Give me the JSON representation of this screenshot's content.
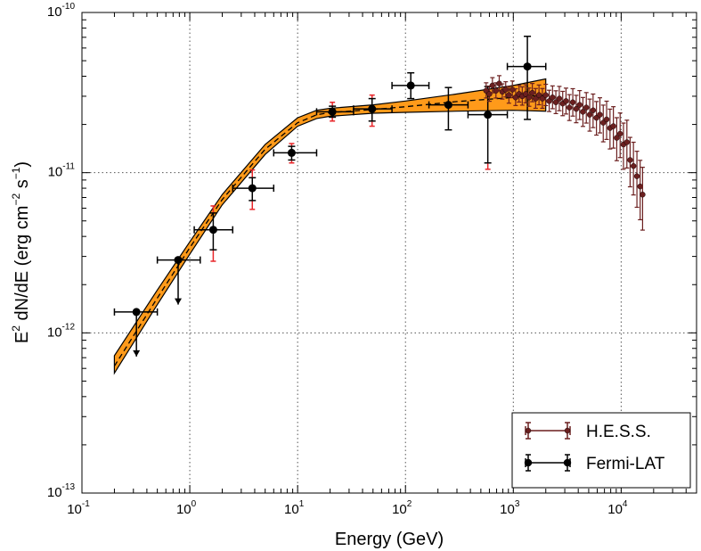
{
  "chart_data": {
    "type": "scatter",
    "xscale": "log",
    "yscale": "log",
    "xlim": [
      0.1,
      50000
    ],
    "ylim": [
      1e-13,
      1e-10
    ],
    "grid": true,
    "xlabel": {
      "base": "Energy (GeV)"
    },
    "ylabel": {
      "prefix": "E",
      "prefix_sup": "2",
      "middle": " dN/dE (erg cm",
      "exp1": "−2",
      "middle2": " s",
      "exp2": "−1",
      "suffix": ")"
    },
    "xticks": [
      {
        "value": 0.1,
        "base": "10",
        "exp": "-1"
      },
      {
        "value": 1,
        "base": "10",
        "exp": "0"
      },
      {
        "value": 10,
        "base": "10",
        "exp": "1"
      },
      {
        "value": 100,
        "base": "10",
        "exp": "2"
      },
      {
        "value": 1000,
        "base": "10",
        "exp": "3"
      },
      {
        "value": 10000,
        "base": "10",
        "exp": "4"
      }
    ],
    "yticks": [
      {
        "value": 1e-13,
        "base": "10",
        "exp": "-13"
      },
      {
        "value": 1e-12,
        "base": "10",
        "exp": "-12"
      },
      {
        "value": 1e-11,
        "base": "10",
        "exp": "-11"
      },
      {
        "value": 1e-10,
        "base": "10",
        "exp": "-10"
      }
    ],
    "legend": {
      "placement": "bottom-right",
      "entries": [
        "H.E.S.S.",
        "Fermi-LAT"
      ]
    },
    "colors": {
      "band": "#ff9a1a",
      "hess": "#6b1f1f",
      "fermi": "#000000",
      "sys_error": "#e8262a"
    },
    "model": {
      "best": [
        [
          0.2,
          6.2e-13
        ],
        [
          0.5,
          1.65e-12
        ],
        [
          1,
          3.4e-12
        ],
        [
          2,
          6.8e-12
        ],
        [
          5,
          1.4e-11
        ],
        [
          10,
          2.05e-11
        ],
        [
          15,
          2.3e-11
        ],
        [
          20,
          2.37e-11
        ],
        [
          50,
          2.48e-11
        ],
        [
          100,
          2.58e-11
        ],
        [
          300,
          2.78e-11
        ],
        [
          1000,
          2.95e-11
        ],
        [
          2000,
          3.05e-11
        ]
      ],
      "upper": [
        [
          0.2,
          7.2e-13
        ],
        [
          0.5,
          1.85e-12
        ],
        [
          1,
          3.7e-12
        ],
        [
          2,
          7.3e-12
        ],
        [
          5,
          1.5e-11
        ],
        [
          10,
          2.2e-11
        ],
        [
          15,
          2.45e-11
        ],
        [
          20,
          2.52e-11
        ],
        [
          50,
          2.65e-11
        ],
        [
          100,
          2.8e-11
        ],
        [
          300,
          3.1e-11
        ],
        [
          1000,
          3.5e-11
        ],
        [
          2000,
          3.85e-11
        ]
      ],
      "lower": [
        [
          0.2,
          5.6e-13
        ],
        [
          0.5,
          1.5e-12
        ],
        [
          1,
          3.1e-12
        ],
        [
          2,
          6.3e-12
        ],
        [
          5,
          1.3e-11
        ],
        [
          10,
          1.95e-11
        ],
        [
          15,
          2.18e-11
        ],
        [
          20,
          2.25e-11
        ],
        [
          50,
          2.35e-11
        ],
        [
          100,
          2.38e-11
        ],
        [
          300,
          2.42e-11
        ],
        [
          1000,
          2.45e-11
        ],
        [
          2000,
          2.42e-11
        ]
      ]
    },
    "fermi_points": [
      {
        "x": 0.32,
        "y": 1.35e-12,
        "xlo": 0.2,
        "xhi": 0.5,
        "ul": true
      },
      {
        "x": 0.78,
        "y": 2.85e-12,
        "xlo": 0.5,
        "xhi": 1.25,
        "ul": true
      },
      {
        "x": 1.65,
        "y": 4.4e-12,
        "xlo": 1.1,
        "xhi": 2.5,
        "ylo": 3.3e-12,
        "yhi": 5.6e-12,
        "sys_lo": 2.8e-12,
        "sys_hi": 6.2e-12
      },
      {
        "x": 3.8,
        "y": 8e-12,
        "xlo": 2.5,
        "xhi": 6,
        "ylo": 6.7e-12,
        "yhi": 9.3e-12,
        "sys_lo": 5.9e-12,
        "sys_hi": 1.04e-11
      },
      {
        "x": 8.8,
        "y": 1.33e-11,
        "xlo": 6,
        "xhi": 15,
        "ylo": 1.2e-11,
        "yhi": 1.46e-11,
        "sys_lo": 1.15e-11,
        "sys_hi": 1.52e-11
      },
      {
        "x": 21,
        "y": 2.4e-11,
        "xlo": 15,
        "xhi": 33,
        "ylo": 2.22e-11,
        "yhi": 2.6e-11,
        "sys_lo": 2.1e-11,
        "sys_hi": 2.75e-11
      },
      {
        "x": 49,
        "y": 2.5e-11,
        "xlo": 33,
        "xhi": 75,
        "ylo": 2.1e-11,
        "yhi": 2.9e-11,
        "sys_lo": 1.95e-11,
        "sys_hi": 3.05e-11
      },
      {
        "x": 112,
        "y": 3.5e-11,
        "xlo": 75,
        "xhi": 165,
        "ylo": 2.9e-11,
        "yhi": 4.2e-11
      },
      {
        "x": 250,
        "y": 2.65e-11,
        "xlo": 165,
        "xhi": 380,
        "ylo": 1.85e-11,
        "yhi": 3.4e-11
      },
      {
        "x": 580,
        "y": 2.3e-11,
        "xlo": 380,
        "xhi": 880,
        "ylo": 1.15e-11,
        "yhi": 3.45e-11,
        "sys_lo": 1.05e-11
      },
      {
        "x": 1350,
        "y": 4.6e-11,
        "xlo": 880,
        "xhi": 2000,
        "ylo": 2.15e-11,
        "yhi": 7.1e-11
      }
    ],
    "hess_points": [
      {
        "x": 560,
        "y": 3.25e-11,
        "yerr": 0.1
      },
      {
        "x": 600,
        "y": 3.1e-11,
        "yerr": 0.1
      },
      {
        "x": 640,
        "y": 3.5e-11,
        "yerr": 0.1
      },
      {
        "x": 690,
        "y": 3.25e-11,
        "yerr": 0.1
      },
      {
        "x": 740,
        "y": 3.6e-11,
        "yerr": 0.1
      },
      {
        "x": 790,
        "y": 3.2e-11,
        "yerr": 0.1
      },
      {
        "x": 850,
        "y": 3.3e-11,
        "yerr": 0.1
      },
      {
        "x": 910,
        "y": 3.05e-11,
        "yerr": 0.11
      },
      {
        "x": 980,
        "y": 3.3e-11,
        "yerr": 0.11
      },
      {
        "x": 1050,
        "y": 2.95e-11,
        "yerr": 0.11
      },
      {
        "x": 1130,
        "y": 3.1e-11,
        "yerr": 0.11
      },
      {
        "x": 1210,
        "y": 3e-11,
        "yerr": 0.12
      },
      {
        "x": 1300,
        "y": 3.1e-11,
        "yerr": 0.12
      },
      {
        "x": 1400,
        "y": 2.95e-11,
        "yerr": 0.12
      },
      {
        "x": 1500,
        "y": 3.15e-11,
        "yerr": 0.12
      },
      {
        "x": 1610,
        "y": 2.9e-11,
        "yerr": 0.13
      },
      {
        "x": 1730,
        "y": 3.05e-11,
        "yerr": 0.13
      },
      {
        "x": 1860,
        "y": 2.9e-11,
        "yerr": 0.13
      },
      {
        "x": 2000,
        "y": 3.05e-11,
        "yerr": 0.14
      },
      {
        "x": 2150,
        "y": 2.8e-11,
        "yerr": 0.14
      },
      {
        "x": 2310,
        "y": 2.95e-11,
        "yerr": 0.15
      },
      {
        "x": 2480,
        "y": 2.75e-11,
        "yerr": 0.15
      },
      {
        "x": 2670,
        "y": 2.9e-11,
        "yerr": 0.16
      },
      {
        "x": 2870,
        "y": 2.7e-11,
        "yerr": 0.16
      },
      {
        "x": 3080,
        "y": 2.8e-11,
        "yerr": 0.17
      },
      {
        "x": 3310,
        "y": 2.55e-11,
        "yerr": 0.17
      },
      {
        "x": 3560,
        "y": 2.75e-11,
        "yerr": 0.18
      },
      {
        "x": 3830,
        "y": 2.5e-11,
        "yerr": 0.18
      },
      {
        "x": 4120,
        "y": 2.65e-11,
        "yerr": 0.19
      },
      {
        "x": 4420,
        "y": 2.4e-11,
        "yerr": 0.19
      },
      {
        "x": 4750,
        "y": 2.55e-11,
        "yerr": 0.2
      },
      {
        "x": 5110,
        "y": 2.3e-11,
        "yerr": 0.21
      },
      {
        "x": 5490,
        "y": 2.45e-11,
        "yerr": 0.22
      },
      {
        "x": 5900,
        "y": 2.2e-11,
        "yerr": 0.22
      },
      {
        "x": 6350,
        "y": 2.3e-11,
        "yerr": 0.23
      },
      {
        "x": 6820,
        "y": 2.05e-11,
        "yerr": 0.24
      },
      {
        "x": 7330,
        "y": 2.15e-11,
        "yerr": 0.25
      },
      {
        "x": 7880,
        "y": 1.9e-11,
        "yerr": 0.26
      },
      {
        "x": 8470,
        "y": 1.95e-11,
        "yerr": 0.27
      },
      {
        "x": 9100,
        "y": 1.65e-11,
        "yerr": 0.28
      },
      {
        "x": 9780,
        "y": 1.75e-11,
        "yerr": 0.29
      },
      {
        "x": 10500,
        "y": 1.5e-11,
        "yerr": 0.3
      },
      {
        "x": 11300,
        "y": 1.55e-11,
        "yerr": 0.31
      },
      {
        "x": 12100,
        "y": 1.2e-11,
        "yerr": 0.32
      },
      {
        "x": 13000,
        "y": 1.1e-11,
        "yerr": 0.34
      },
      {
        "x": 14000,
        "y": 9.5e-12,
        "yerr": 0.36
      },
      {
        "x": 15000,
        "y": 8.2e-12,
        "yerr": 0.38
      },
      {
        "x": 15800,
        "y": 7.3e-12,
        "yerr": 0.4
      }
    ]
  }
}
